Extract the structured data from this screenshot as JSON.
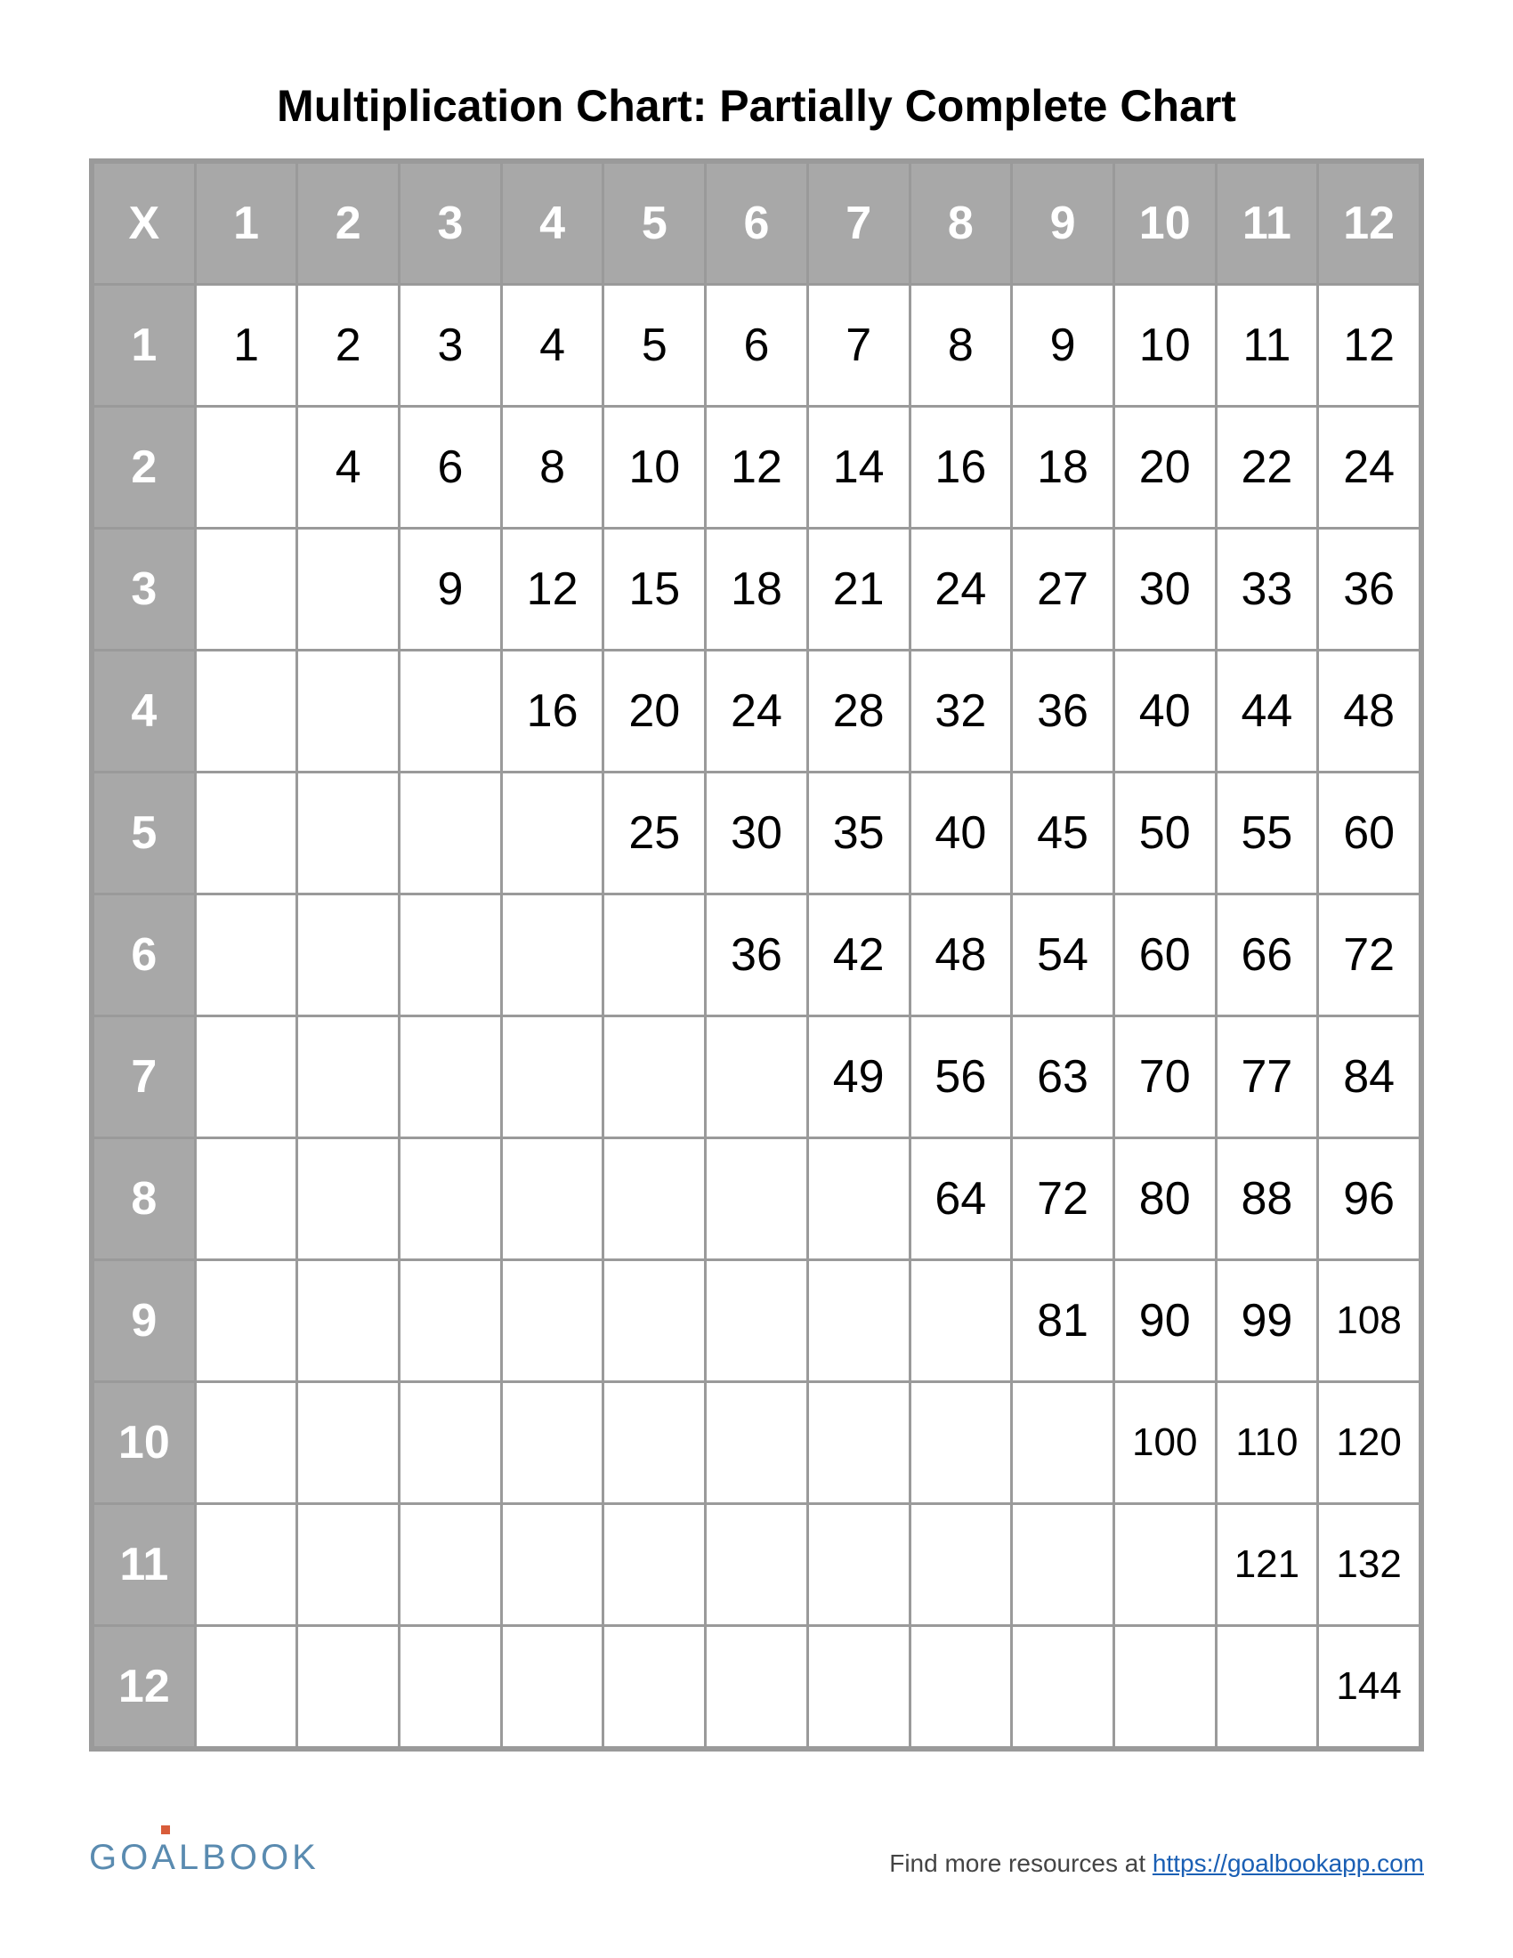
{
  "title": "Multiplication Chart: Partially Complete Chart",
  "table": {
    "type": "table",
    "corner_label": "X",
    "col_headers": [
      "1",
      "2",
      "3",
      "4",
      "5",
      "6",
      "7",
      "8",
      "9",
      "10",
      "11",
      "12"
    ],
    "row_headers": [
      "1",
      "2",
      "3",
      "4",
      "5",
      "6",
      "7",
      "8",
      "9",
      "10",
      "11",
      "12"
    ],
    "rows": [
      [
        "1",
        "2",
        "3",
        "4",
        "5",
        "6",
        "7",
        "8",
        "9",
        "10",
        "11",
        "12"
      ],
      [
        "",
        "4",
        "6",
        "8",
        "10",
        "12",
        "14",
        "16",
        "18",
        "20",
        "22",
        "24"
      ],
      [
        "",
        "",
        "9",
        "12",
        "15",
        "18",
        "21",
        "24",
        "27",
        "30",
        "33",
        "36"
      ],
      [
        "",
        "",
        "",
        "16",
        "20",
        "24",
        "28",
        "32",
        "36",
        "40",
        "44",
        "48"
      ],
      [
        "",
        "",
        "",
        "",
        "25",
        "30",
        "35",
        "40",
        "45",
        "50",
        "55",
        "60"
      ],
      [
        "",
        "",
        "",
        "",
        "",
        "36",
        "42",
        "48",
        "54",
        "60",
        "66",
        "72"
      ],
      [
        "",
        "",
        "",
        "",
        "",
        "",
        "49",
        "56",
        "63",
        "70",
        "77",
        "84"
      ],
      [
        "",
        "",
        "",
        "",
        "",
        "",
        "",
        "64",
        "72",
        "80",
        "88",
        "96"
      ],
      [
        "",
        "",
        "",
        "",
        "",
        "",
        "",
        "",
        "81",
        "90",
        "99",
        "108"
      ],
      [
        "",
        "",
        "",
        "",
        "",
        "",
        "",
        "",
        "",
        "100",
        "110",
        "120"
      ],
      [
        "",
        "",
        "",
        "",
        "",
        "",
        "",
        "",
        "",
        "",
        "121",
        "132"
      ],
      [
        "",
        "",
        "",
        "",
        "",
        "",
        "",
        "",
        "",
        "",
        "",
        "144"
      ]
    ],
    "header_bg": "#a8a8a8",
    "header_text_color": "#ffffff",
    "cell_bg": "#ffffff",
    "cell_text_color": "#000000",
    "border_color": "#9a9a9a",
    "cell_fontsize_pt": 39,
    "small_cell_fontsize_pt": 33,
    "header_fontsize_pt": 39
  },
  "footer": {
    "logo_text": "GOALBOOK",
    "logo_color": "#5a8bb0",
    "logo_accent_color": "#d85c3a",
    "resources_prefix": "Find more resources at ",
    "resources_link_text": "https://goalbookapp.com",
    "link_color": "#1a5fb4"
  }
}
